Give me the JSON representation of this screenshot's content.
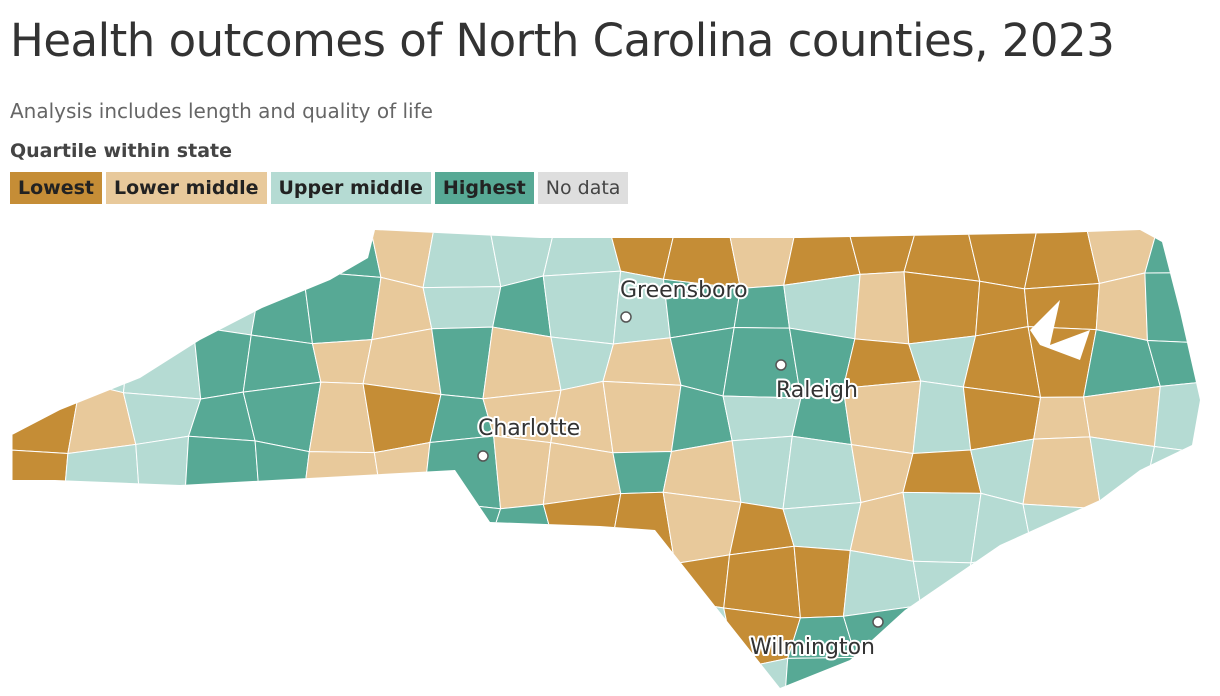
{
  "header": {
    "title": "Health outcomes of North Carolina counties, 2023",
    "subtitle": "Analysis includes length and quality of life"
  },
  "legend": {
    "title": "Quartile within state",
    "items": [
      {
        "label": "Lowest",
        "color": "#c58d36"
      },
      {
        "label": "Lower middle",
        "color": "#e8c99b"
      },
      {
        "label": "Upper middle",
        "color": "#b5dbd3"
      },
      {
        "label": "Highest",
        "color": "#57a995"
      },
      {
        "label": "No data",
        "color": "#dedede"
      }
    ]
  },
  "cities": [
    "Greensboro",
    "Raleigh",
    "Charlotte",
    "Wilmington"
  ]
}
